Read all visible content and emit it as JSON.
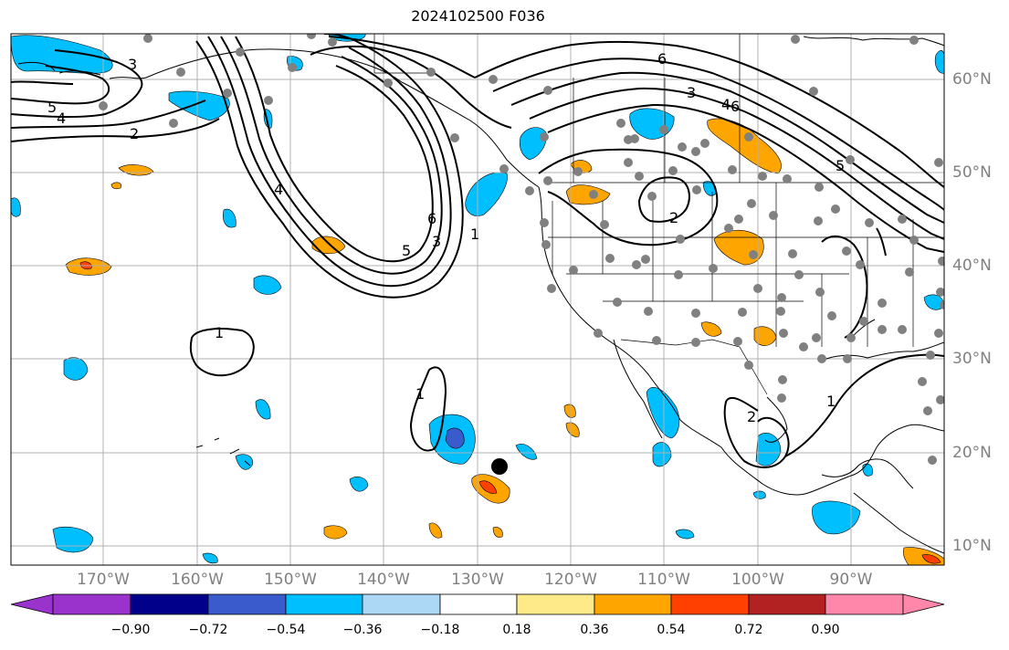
{
  "title": "2024102500 F036",
  "longitude_labels": [
    "170°W",
    "160°W",
    "150°W",
    "140°W",
    "130°W",
    "120°W",
    "110°W",
    "100°W",
    "90°W"
  ],
  "latitude_labels": [
    "60°N",
    "50°N",
    "40°N",
    "30°N",
    "20°N",
    "10°N"
  ],
  "colorbar": {
    "ticks": [
      "−0.90",
      "−0.72",
      "−0.54",
      "−0.36",
      "−0.18",
      "0.18",
      "0.36",
      "0.54",
      "0.72",
      "0.90"
    ],
    "colors": [
      "#9933cc",
      "#00008b",
      "#3a5bcc",
      "#00bfff",
      "#add8f5",
      "#ffffff",
      "#ffea8a",
      "#ffa500",
      "#ff4000",
      "#b22222",
      "#ff88aa"
    ]
  },
  "contour_labels": [
    "1",
    "2",
    "3",
    "4",
    "5",
    "6"
  ],
  "colors": {
    "station": "#808080",
    "storm_center": "#000000",
    "grid": "#b0b0b0"
  }
}
